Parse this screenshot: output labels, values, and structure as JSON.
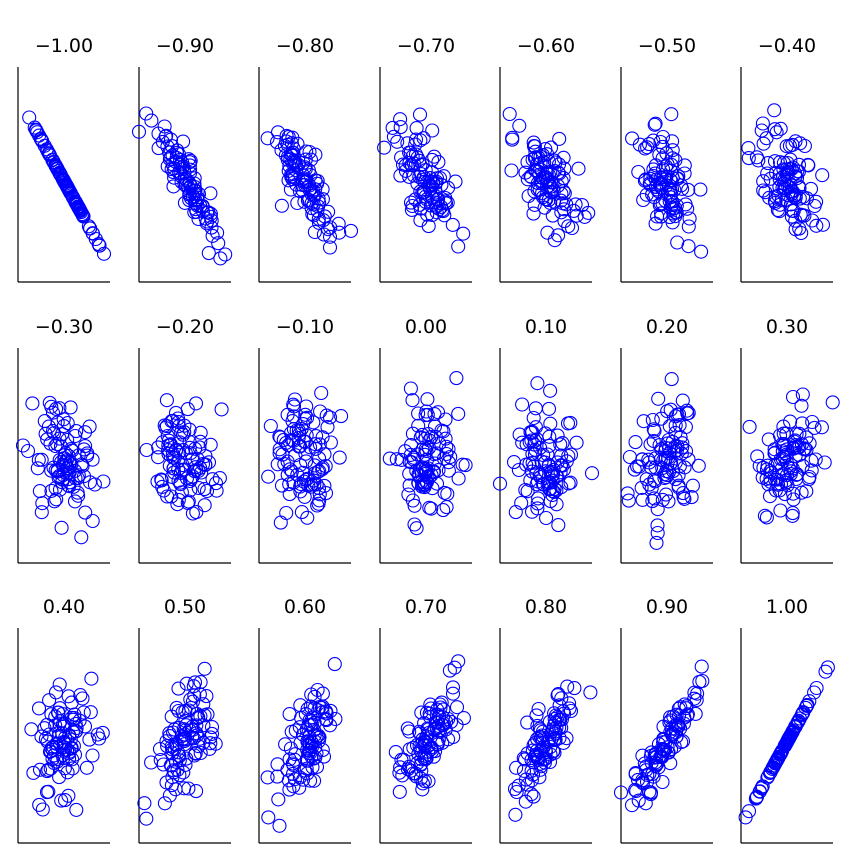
{
  "chart_data": {
    "type": "scatter",
    "layout": "small-multiples",
    "rows": 3,
    "cols": 7,
    "points_per_panel": 100,
    "marker": "open-circle",
    "marker_color": "#0000ff",
    "axes": "left and bottom lines only, no ticks, no tick labels",
    "grid": false,
    "xlim": [
      -3,
      3
    ],
    "ylim": [
      -3,
      3
    ],
    "panels": [
      {
        "title": "−1.00",
        "correlation": -1.0
      },
      {
        "title": "−0.90",
        "correlation": -0.9
      },
      {
        "title": "−0.80",
        "correlation": -0.8
      },
      {
        "title": "−0.70",
        "correlation": -0.7
      },
      {
        "title": "−0.60",
        "correlation": -0.6
      },
      {
        "title": "−0.50",
        "correlation": -0.5
      },
      {
        "title": "−0.40",
        "correlation": -0.4
      },
      {
        "title": "−0.30",
        "correlation": -0.3
      },
      {
        "title": "−0.20",
        "correlation": -0.2
      },
      {
        "title": "−0.10",
        "correlation": -0.1
      },
      {
        "title": "0.00",
        "correlation": 0.0
      },
      {
        "title": "0.10",
        "correlation": 0.1
      },
      {
        "title": "0.20",
        "correlation": 0.2
      },
      {
        "title": "0.30",
        "correlation": 0.3
      },
      {
        "title": "0.40",
        "correlation": 0.4
      },
      {
        "title": "0.50",
        "correlation": 0.5
      },
      {
        "title": "0.60",
        "correlation": 0.6
      },
      {
        "title": "0.70",
        "correlation": 0.7
      },
      {
        "title": "0.80",
        "correlation": 0.8
      },
      {
        "title": "0.90",
        "correlation": 0.9
      },
      {
        "title": "1.00",
        "correlation": 1.0
      }
    ]
  }
}
